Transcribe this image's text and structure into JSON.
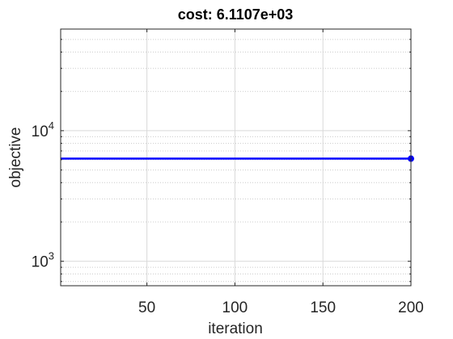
{
  "chart_data": {
    "type": "line",
    "title": "cost: 6.1107e+03",
    "xlabel": "iteration",
    "ylabel": "objective",
    "xlim": [
      1,
      200
    ],
    "ylim": [
      650,
      60000
    ],
    "yscale": "log",
    "grid": true,
    "minor_grid": true,
    "x_ticks": [
      50,
      100,
      150,
      200
    ],
    "x_tick_labels": [
      "50",
      "100",
      "150",
      "200"
    ],
    "y_ticks": [
      1000,
      10000
    ],
    "y_tick_labels": [
      {
        "base": "10",
        "exp": "3"
      },
      {
        "base": "10",
        "exp": "4"
      }
    ],
    "series": [
      {
        "color": "#0000ff",
        "x": [
          1,
          200
        ],
        "y": [
          6110.7,
          6110.7
        ],
        "end_marker": {
          "x": 200,
          "y": 6110.7
        }
      }
    ]
  }
}
